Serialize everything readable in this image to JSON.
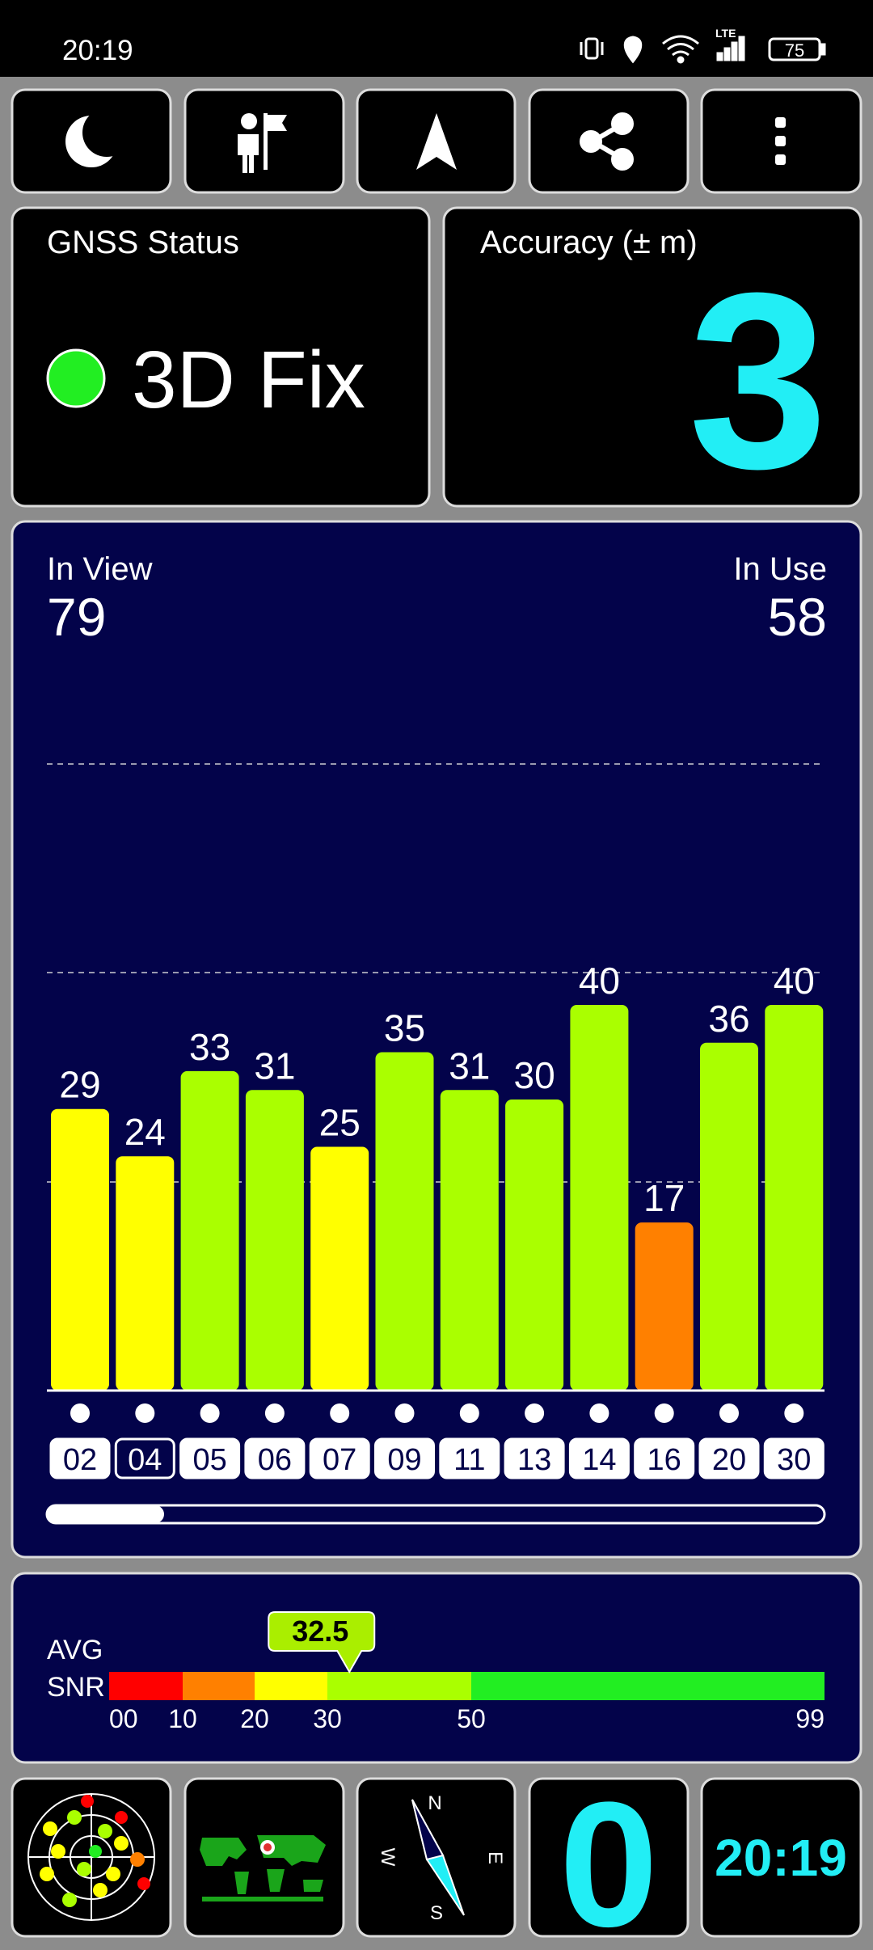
{
  "status_bar": {
    "time": "20:19",
    "network": "LTE",
    "battery": "75"
  },
  "gnss_status": {
    "label": "GNSS Status",
    "fix": "3D Fix"
  },
  "accuracy": {
    "label": "Accuracy (± m)",
    "value": 3
  },
  "satellites": {
    "in_view_label": "In View",
    "in_view": 79,
    "in_use_label": "In Use",
    "in_use": 58,
    "ids": [
      "02",
      "04",
      "05",
      "06",
      "07",
      "09",
      "11",
      "13",
      "14",
      "16",
      "20",
      "30"
    ],
    "snr": [
      29,
      24,
      33,
      31,
      25,
      35,
      31,
      30,
      40,
      17,
      36,
      40
    ],
    "colors": [
      "#ffff00",
      "#ffff00",
      "#aaff00",
      "#aaff00",
      "#ffff00",
      "#aaff00",
      "#aaff00",
      "#aaff00",
      "#aaff00",
      "#ff8000",
      "#aaff00",
      "#aaff00"
    ],
    "selected": "04"
  },
  "avg_snr": {
    "label_top": "AVG",
    "label_bottom": "SNR",
    "value": 32.5,
    "scale": [
      {
        "value": 0,
        "label": "00"
      },
      10,
      20,
      30,
      50,
      99
    ],
    "colors": [
      "#ff0000",
      "#ff8000",
      "#ffff00",
      "#aaff00",
      "#22ee22"
    ]
  },
  "bottom": {
    "speed": 0,
    "clock": "20:19",
    "compass": {
      "n": "N",
      "e": "E",
      "s": "S",
      "w": "W"
    }
  }
}
